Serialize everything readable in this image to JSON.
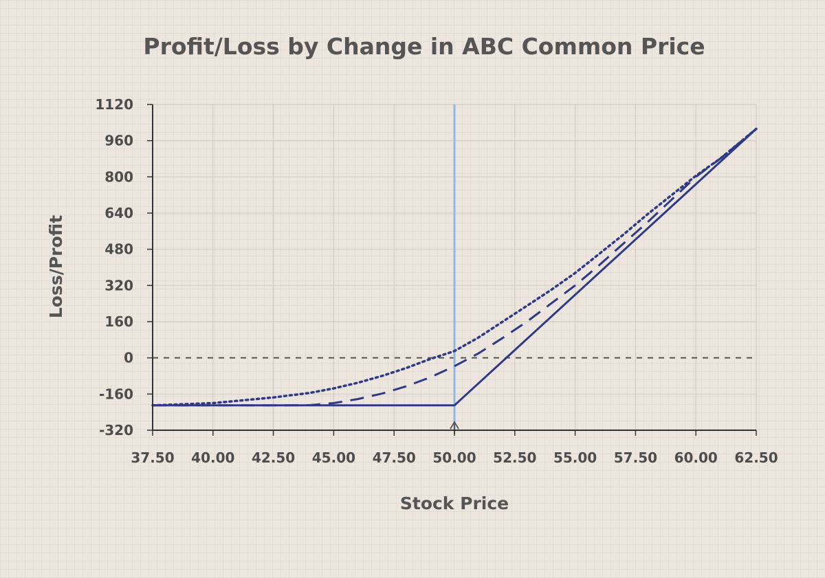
{
  "chart_data": {
    "type": "line",
    "title": "Profit/Loss by Change in ABC Common Price",
    "xlabel": "Stock Price",
    "ylabel": "Loss/Profit",
    "xlim": [
      37.5,
      62.5
    ],
    "ylim": [
      -320,
      1120
    ],
    "xticks": [
      "37.50",
      "40.00",
      "42.50",
      "45.00",
      "47.50",
      "50.00",
      "52.50",
      "55.00",
      "57.50",
      "60.00",
      "62.50"
    ],
    "yticks": [
      "1120",
      "960",
      "800",
      "640",
      "480",
      "320",
      "160",
      "0",
      "-160",
      "-320"
    ],
    "grid": true,
    "legend": "none",
    "reference_lines": {
      "zero_line_y": 0,
      "current_price_x": 50
    },
    "colors": {
      "series": "#2e3a87",
      "reference_vertical": "#8fb8e3",
      "zero_line": "#555555",
      "grid": "#d3ccc3",
      "axis": "#333333"
    },
    "series": [
      {
        "style": "solid",
        "x": [
          37.5,
          50,
          62.5
        ],
        "y": [
          -210,
          -210,
          1012
        ]
      },
      {
        "style": "dashed",
        "x": [
          37.5,
          40,
          42.5,
          44,
          45,
          46,
          47,
          48,
          49,
          50,
          51,
          52,
          53,
          54,
          55,
          56,
          57,
          58,
          59,
          60,
          61,
          62.5
        ],
        "y": [
          -210,
          -210,
          -210,
          -209,
          -200,
          -182,
          -158,
          -126,
          -86,
          -37,
          20,
          88,
          160,
          240,
          320,
          410,
          505,
          600,
          700,
          800,
          880,
          1012
        ]
      },
      {
        "style": "dotted",
        "x": [
          37.5,
          40,
          42.5,
          44,
          45,
          46,
          47,
          48,
          49,
          50,
          51,
          52,
          53,
          54,
          55,
          56,
          57,
          58,
          59,
          60,
          61,
          62.5
        ],
        "y": [
          -210,
          -200,
          -175,
          -155,
          -135,
          -110,
          -80,
          -45,
          -5,
          30,
          90,
          160,
          230,
          300,
          375,
          460,
          545,
          635,
          720,
          805,
          880,
          1012
        ]
      }
    ]
  }
}
